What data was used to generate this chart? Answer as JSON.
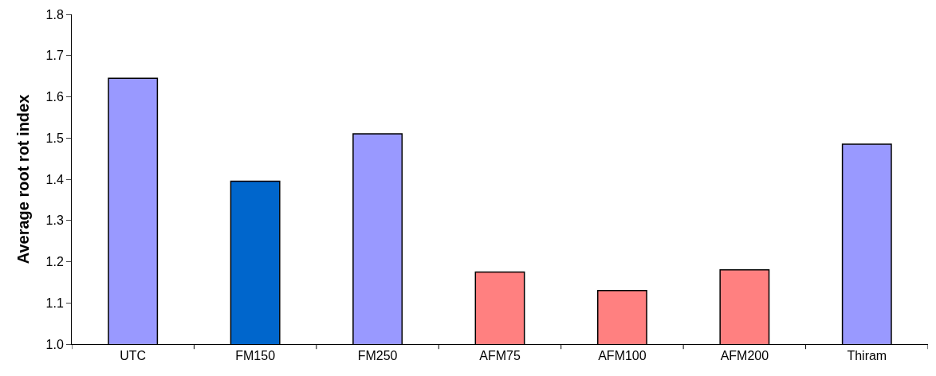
{
  "chart_data": {
    "type": "bar",
    "ylabel": "Average root rot index",
    "categories": [
      "UTC",
      "FM150",
      "FM250",
      "AFM75",
      "AFM100",
      "AFM200",
      "Thiram"
    ],
    "values": [
      1.645,
      1.395,
      1.51,
      1.175,
      1.13,
      1.18,
      1.485
    ],
    "colors": [
      "#9999ff",
      "#0066cc",
      "#9999ff",
      "#ff8080",
      "#ff8080",
      "#ff8080",
      "#9999ff"
    ],
    "ylim": [
      1.0,
      1.8
    ],
    "yticks": [
      {
        "value": 1.0,
        "label": "1.0"
      },
      1.1,
      1.2,
      1.3,
      1.4,
      1.5,
      1.6,
      1.7,
      1.8
    ],
    "grid": false
  }
}
